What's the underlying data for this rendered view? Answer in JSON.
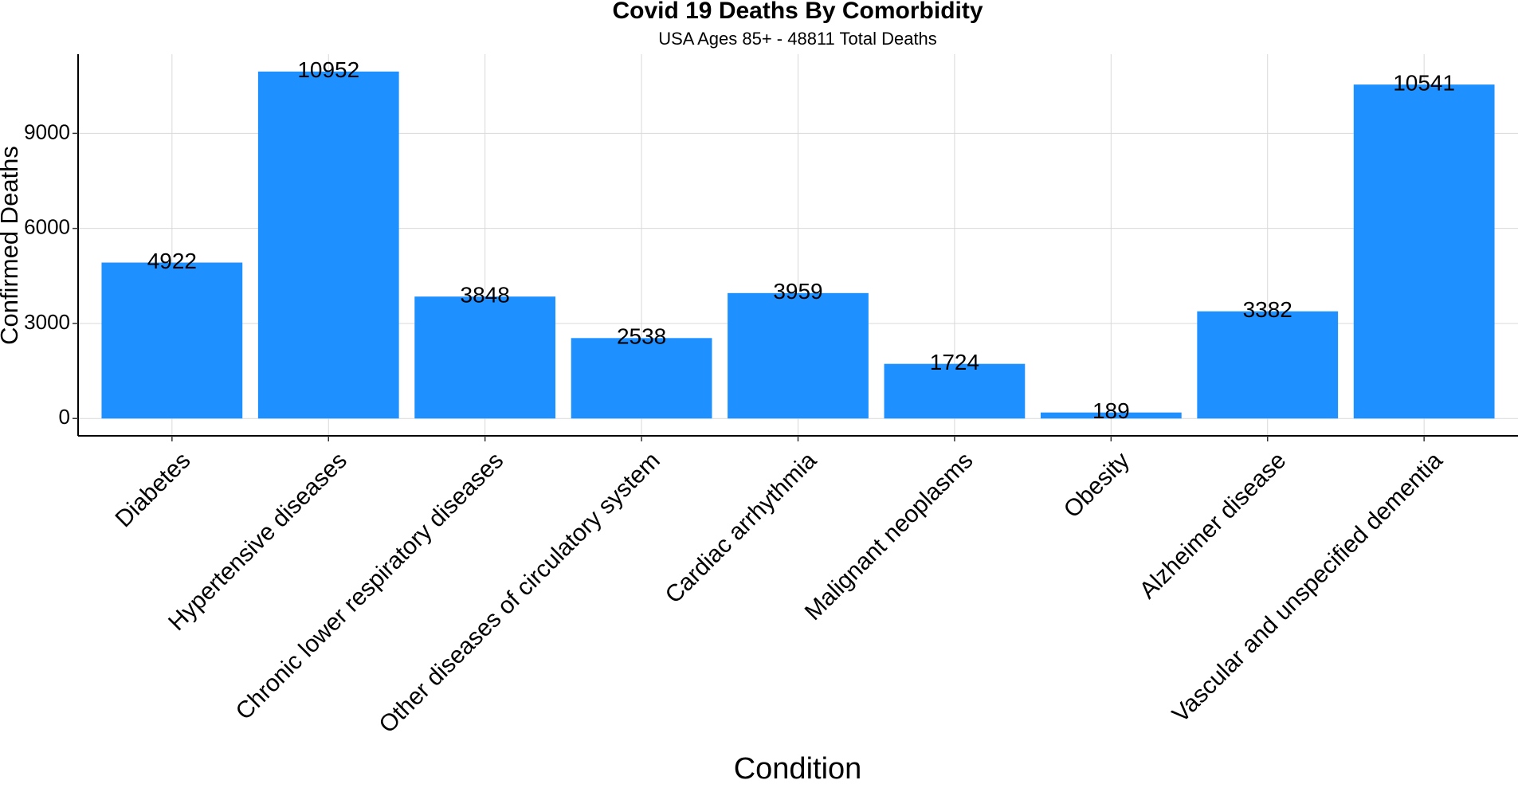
{
  "chart_data": {
    "type": "bar",
    "title": "Covid 19 Deaths By Comorbidity",
    "subtitle": "USA Ages 85+  -  48811 Total Deaths",
    "xlabel": "Condition",
    "ylabel": "Confirmed Deaths",
    "categories": [
      "Diabetes",
      "Hypertensive diseases",
      "Chronic lower respiratory diseases",
      "Other diseases of circulatory system",
      "Cardiac arrhythmia",
      "Malignant neoplasms",
      "Obesity",
      "Alzheimer disease",
      "Vascular and unspecified dementia"
    ],
    "values": [
      4922,
      10952,
      3848,
      2538,
      3959,
      1724,
      189,
      3382,
      10541
    ],
    "data_labels": [
      "4922",
      "10952",
      "3848",
      "2538",
      "3959",
      "1724",
      "189",
      "3382",
      "10541"
    ],
    "yticks": [
      0,
      3000,
      6000,
      9000
    ],
    "ytick_labels": [
      "0",
      "3000",
      "6000",
      "9000"
    ],
    "ylim": [
      -548,
      11500
    ],
    "grid": true,
    "bar_color": "#1e90ff",
    "legend": "none"
  }
}
